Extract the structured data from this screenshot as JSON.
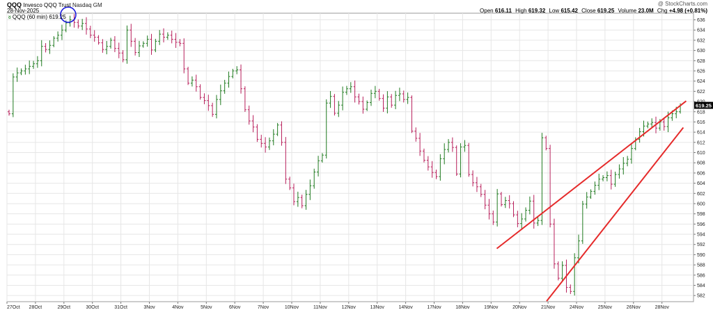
{
  "header": {
    "symbol": "QQQ",
    "name": "Invesco QQQ Trust",
    "exchange": "Nasdaq GM",
    "date": "28-Nov-2025",
    "watermark": "@ StockCharts.com",
    "series_label": "QQQ (60 min) 619.25",
    "stats": {
      "open_label": "Open",
      "open": "616.11",
      "high_label": "High",
      "high": "619.32",
      "low_label": "Low",
      "low": "615.42",
      "close_label": "Close",
      "close": "619.25",
      "volume_label": "Volume",
      "volume": "23.0M",
      "chg_label": "Chg",
      "chg": "+4.98 (+0.81%)"
    }
  },
  "chart_data": {
    "type": "ohlc",
    "interval": "60 min",
    "y_ticks": [
      582,
      584,
      586,
      588,
      590,
      592,
      594,
      596,
      598,
      600,
      602,
      604,
      606,
      608,
      610,
      612,
      614,
      616,
      618,
      620,
      622,
      624,
      626,
      628,
      630,
      632,
      634,
      636
    ],
    "ylim": [
      580.8,
      637.3
    ],
    "last_price": "619.25",
    "x_labels": [
      "27Oct",
      "28Oct",
      "29Oct",
      "30Oct",
      "31Oct",
      "3Nov",
      "4Nov",
      "5Nov",
      "6Nov",
      "7Nov",
      "10Nov",
      "11Nov",
      "12Nov",
      "13Nov",
      "14Nov",
      "17Nov",
      "18Nov",
      "19Nov",
      "20Nov",
      "21Nov",
      "24Nov",
      "25Nov",
      "26Nov",
      "28Nov"
    ],
    "bars_per_day": 7,
    "closes": [
      617.6,
      624.8,
      625.6,
      626.0,
      626.4,
      626.9,
      627.4,
      628.0,
      630.8,
      630.2,
      631.0,
      632.4,
      633.0,
      634.0,
      635.4,
      636.0,
      635.5,
      634.8,
      635.3,
      634.2,
      633.0,
      632.6,
      631.5,
      630.2,
      630.8,
      632.0,
      630.4,
      629.5,
      628.2,
      634.0,
      631.8,
      629.6,
      630.9,
      631.4,
      632.2,
      630.1,
      631.8,
      633.2,
      632.6,
      633.0,
      632.2,
      631.6,
      631.4,
      626.4,
      623.6,
      624.2,
      622.9,
      620.8,
      620.2,
      619.2,
      617.5,
      620.4,
      622.1,
      623.6,
      624.9,
      626.0,
      626.2,
      622.5,
      618.4,
      616.2,
      615.0,
      612.6,
      611.8,
      611.1,
      612.3,
      613.6,
      615.4,
      612.0,
      604.8,
      603.1,
      600.4,
      601.2,
      599.6,
      601.8,
      603.5,
      606.2,
      608.4,
      609.5,
      619.7,
      621.0,
      617.7,
      619.3,
      621.8,
      622.5,
      622.9,
      620.9,
      620.0,
      618.5,
      619.8,
      621.6,
      622.0,
      620.6,
      618.7,
      620.9,
      619.3,
      621.2,
      621.5,
      620.4,
      620.8,
      614.2,
      612.8,
      610.3,
      608.5,
      607.2,
      606.1,
      605.3,
      608.8,
      610.6,
      612.0,
      611.0,
      605.8,
      611.1,
      611.4,
      605.7,
      604.1,
      603.3,
      601.8,
      599.7,
      598.0,
      596.4,
      601.9,
      599.8,
      600.6,
      600.0,
      597.8,
      596.1,
      597.0,
      598.7,
      600.5,
      596.2,
      596.7,
      612.9,
      610.8,
      596.0,
      588.2,
      585.4,
      587.9,
      583.6,
      582.8,
      589.4,
      592.7,
      599.9,
      601.3,
      602.4,
      603.6,
      604.8,
      605.1,
      605.5,
      603.8,
      605.7,
      606.8,
      607.9,
      608.7,
      610.8,
      612.6,
      614.1,
      615.2,
      615.6,
      615.9,
      614.8,
      616.0,
      615.1,
      616.8,
      617.6,
      618.0,
      619.25
    ]
  },
  "trendlines": [
    {
      "name": "upper-trendline",
      "x": [
        17.2,
        23.85
      ],
      "y": [
        591.2,
        620.1
      ],
      "color": "#e52a2a"
    },
    {
      "name": "lower-trendline",
      "x": [
        18.95,
        23.75
      ],
      "y": [
        580.9,
        614.9
      ],
      "color": "#e52a2a"
    }
  ],
  "annotation": {
    "name": "high-circle",
    "x": 2.15,
    "y": 637.0,
    "color": "#1a1adb"
  },
  "colors": {
    "up": "#1f7a1f",
    "down": "#b81f5b",
    "grid": "#e6e6e6",
    "axis": "#777777",
    "price_box": "#000000"
  }
}
